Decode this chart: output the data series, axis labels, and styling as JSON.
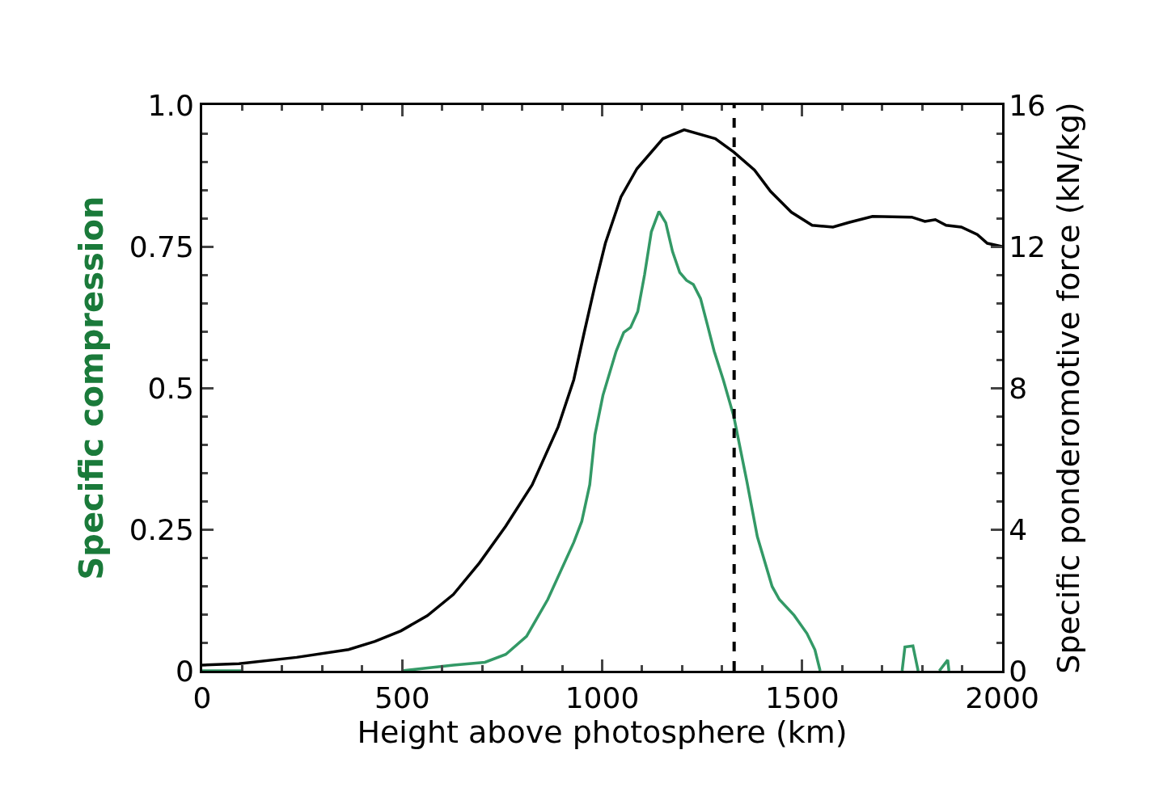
{
  "chart_data": {
    "type": "line",
    "xlabel": "Height above photosphere (km)",
    "ylabel": "Specific compression",
    "y2label": "Specific ponderomotive force (kN/kg)",
    "xlim": [
      0,
      2000
    ],
    "xticks": [
      0,
      500,
      1000,
      1500,
      2000
    ],
    "ylim": [
      0,
      1.0
    ],
    "yticks": [
      0,
      0.25,
      0.5,
      0.75,
      {
        "value": 1.0,
        "label": "1.0"
      }
    ],
    "y2lim": [
      0,
      16
    ],
    "y2ticks": [
      0,
      4,
      8,
      12,
      16
    ],
    "ref_lines": [
      {
        "axis": "x",
        "value": 1330,
        "color": "#000000",
        "line_style": "dashed"
      }
    ],
    "series": [
      {
        "color": "#339966",
        "axis": "y",
        "x": [
          0,
          100,
          101,
          500,
          628,
          707,
          759,
          811,
          864,
          929,
          949,
          969,
          982,
          1002,
          1035,
          1054,
          1071,
          1089,
          1106,
          1123,
          1142,
          1159,
          1176,
          1194,
          1211,
          1228,
          1246,
          1263,
          1280,
          1303,
          1329,
          1362,
          1388,
          1425,
          1443,
          1480,
          1512,
          1532,
          1545,
          1546,
          1750,
          1757,
          1777,
          1790,
          1791,
          1843,
          1864,
          1867
        ],
        "values": [
          0,
          0,
          null,
          0,
          0.01,
          0.015,
          0.029,
          0.061,
          0.126,
          0.227,
          0.264,
          0.329,
          0.417,
          0.487,
          0.565,
          0.598,
          0.607,
          0.635,
          0.7,
          0.776,
          0.812,
          0.792,
          0.741,
          0.704,
          0.69,
          0.683,
          0.658,
          0.612,
          0.565,
          0.514,
          0.45,
          0.334,
          0.237,
          0.149,
          0.126,
          0.098,
          0.066,
          0.037,
          0,
          null,
          0,
          0.042,
          0.044,
          0,
          null,
          0,
          0.019,
          0
        ]
      },
      {
        "color": "#000000",
        "axis": "y2",
        "x": [
          0,
          92,
          236,
          366,
          432,
          497,
          563,
          628,
          693,
          759,
          825,
          890,
          929,
          955,
          982,
          1008,
          1047,
          1087,
          1152,
          1205,
          1283,
          1329,
          1381,
          1421,
          1473,
          1525,
          1577,
          1617,
          1676,
          1774,
          1807,
          1833,
          1860,
          1898,
          1938,
          1963,
          2000
        ],
        "values": [
          0.16,
          0.2,
          0.38,
          0.6,
          0.83,
          1.13,
          1.56,
          2.16,
          3.05,
          4.09,
          5.26,
          6.9,
          8.23,
          9.56,
          10.9,
          12.09,
          13.4,
          14.2,
          15.05,
          15.3,
          15.05,
          14.67,
          14.16,
          13.56,
          12.97,
          12.6,
          12.55,
          12.68,
          12.85,
          12.83,
          12.71,
          12.76,
          12.6,
          12.55,
          12.34,
          12.09,
          12.0
        ]
      }
    ]
  }
}
